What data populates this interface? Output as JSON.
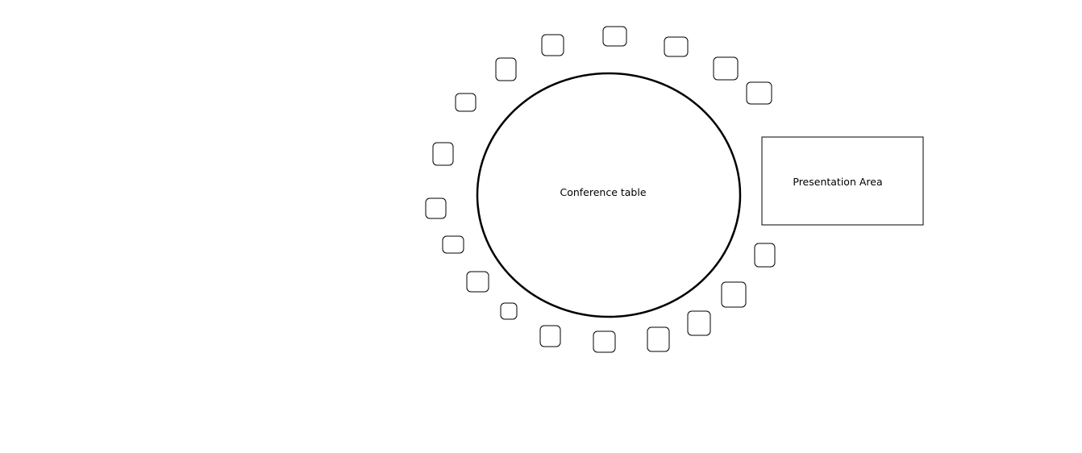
{
  "table": {
    "label": "Conference table"
  },
  "presentation_area": {
    "label": "Presentation Area"
  }
}
